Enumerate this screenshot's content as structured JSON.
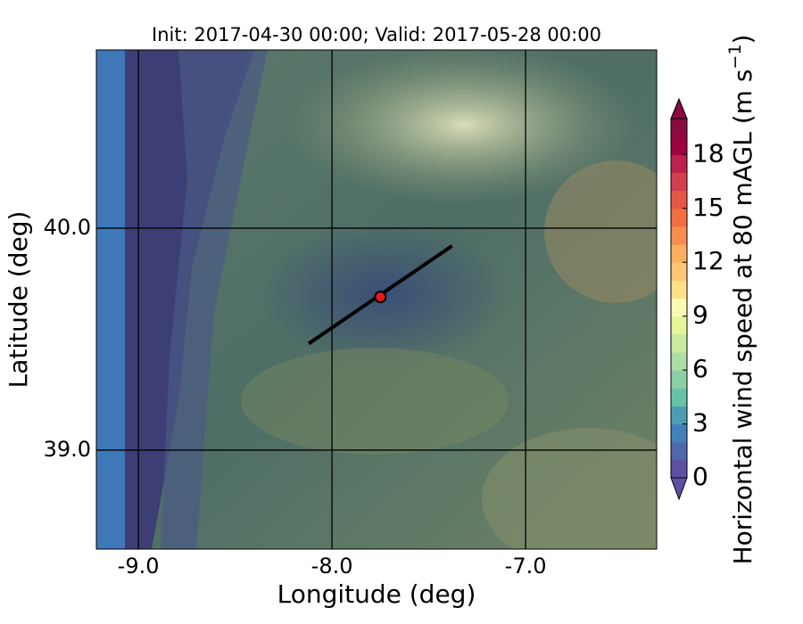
{
  "chart_data": {
    "type": "map",
    "title": "Init: 2017-04-30 00:00; Valid: 2017-05-28 00:00",
    "x_label": "Longitude (deg)",
    "y_label": "Latitude (deg)",
    "xlim": [
      -9.217,
      -6.323
    ],
    "ylim": [
      38.554,
      40.803
    ],
    "xticks": [
      {
        "value": -9,
        "label": "-9.0"
      },
      {
        "value": -8,
        "label": "-8.0"
      },
      {
        "value": -7,
        "label": "-7.0"
      }
    ],
    "yticks": [
      {
        "value": 39,
        "label": "39.0"
      },
      {
        "value": 40,
        "label": "40.0"
      }
    ],
    "grid": true,
    "site": {
      "lon": -7.75,
      "lat": 39.69,
      "color": "#e8191b"
    },
    "transect": {
      "lon": [
        -8.12,
        -7.38
      ],
      "lat": [
        39.48,
        39.92
      ],
      "color": "#000000"
    },
    "colorbar": {
      "label_parts": [
        "Horizontal wind speed at 80 mAGL (m s",
        "−1",
        ")"
      ],
      "lim": [
        0,
        20
      ],
      "ticks": [
        0,
        3,
        6,
        9,
        12,
        15,
        18
      ],
      "colors": [
        "#5e4fa2",
        "#4d68ad",
        "#3f82b9",
        "#4c9db4",
        "#66c2a5",
        "#8bd0a4",
        "#abdda4",
        "#cbea9f",
        "#e6f598",
        "#f7fcb2",
        "#fee08b",
        "#fdc574",
        "#fdae61",
        "#f88d52",
        "#f46d43",
        "#e55749",
        "#d53e4f",
        "#be2149",
        "#9e0142",
        "#8a0a3f"
      ]
    }
  }
}
